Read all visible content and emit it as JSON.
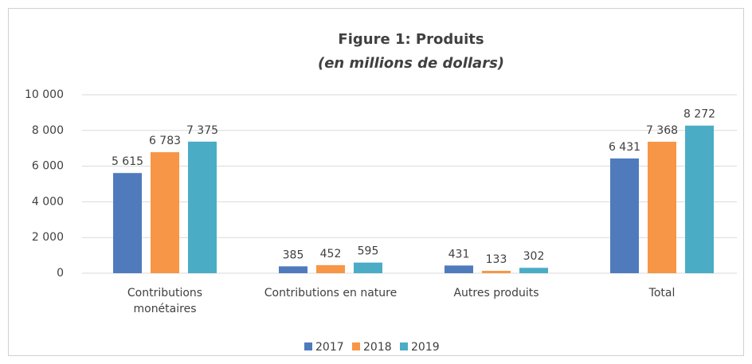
{
  "chart_data": {
    "type": "bar",
    "title": "Figure 1: Produits",
    "subtitle": "(en millions de dollars)",
    "categories": [
      "Contributions monétaires",
      "Contributions en nature",
      "Autres produits",
      "Total"
    ],
    "series": [
      {
        "name": "2017",
        "color": "#4f7bbd",
        "values": [
          5615,
          385,
          431,
          6431
        ],
        "value_labels": [
          "5 615",
          "385",
          "431",
          "6 431"
        ]
      },
      {
        "name": "2018",
        "color": "#f79646",
        "values": [
          6783,
          452,
          133,
          7368
        ],
        "value_labels": [
          "6 783",
          "452",
          "133",
          "7 368"
        ]
      },
      {
        "name": "2019",
        "color": "#4bacc6",
        "values": [
          7375,
          595,
          302,
          8272
        ],
        "value_labels": [
          "7 375",
          "595",
          "302",
          "8 272"
        ]
      }
    ],
    "ylim": [
      0,
      10000
    ],
    "yticks": [
      0,
      {
        "value": 2000,
        "label": "2 000"
      },
      {
        "value": 4000,
        "label": "4 000"
      },
      {
        "value": 6000,
        "label": "6 000"
      },
      {
        "value": 8000,
        "label": "8 000"
      },
      {
        "value": 10000,
        "label": "10 000"
      }
    ],
    "grid": true,
    "legend": "bottom"
  }
}
